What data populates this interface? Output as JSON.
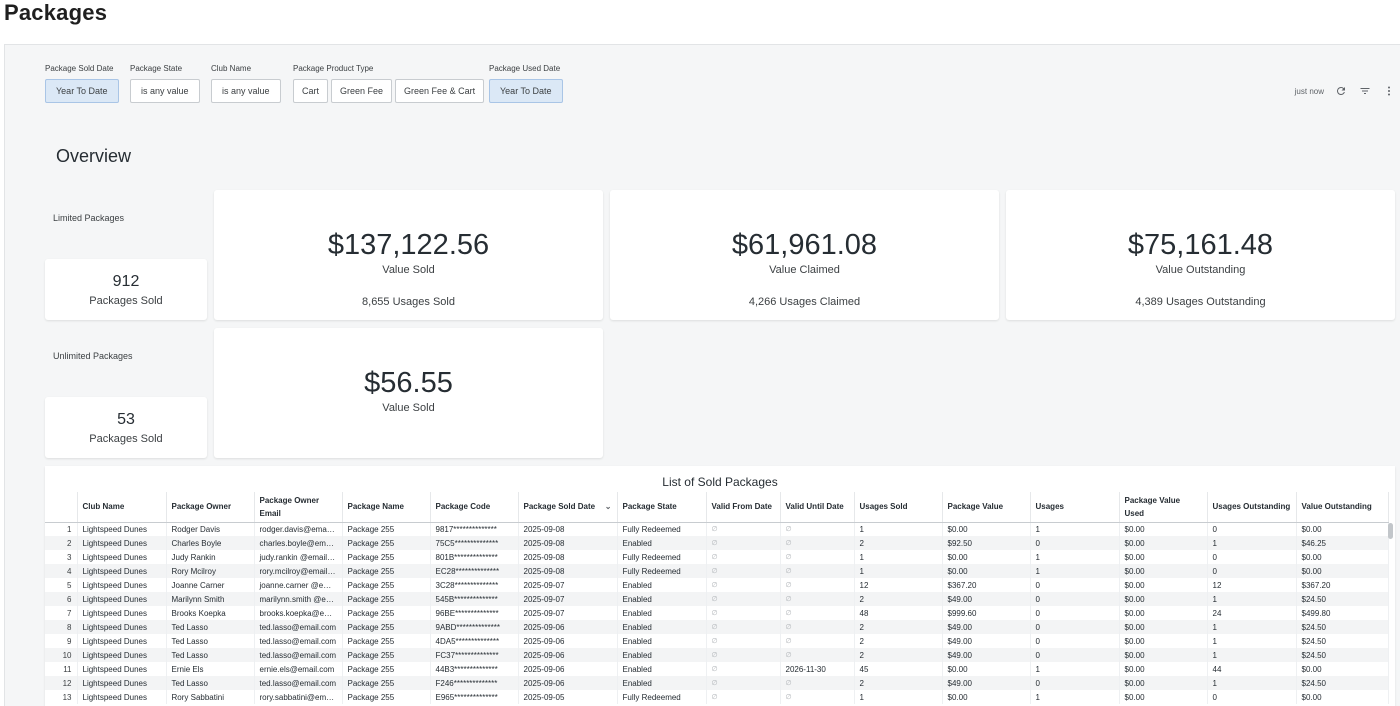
{
  "page": {
    "title": "Packages"
  },
  "filters": [
    {
      "label": "Package Sold Date",
      "chips": [
        {
          "text": "Year To Date",
          "selected": true
        }
      ]
    },
    {
      "label": "Package State",
      "chips": [
        {
          "text": "is any value",
          "selected": false
        }
      ]
    },
    {
      "label": "Club Name",
      "chips": [
        {
          "text": "is any value",
          "selected": false
        }
      ]
    },
    {
      "label": "Package Product Type",
      "chips": [
        {
          "text": "Cart",
          "selected": false
        },
        {
          "text": "Green Fee",
          "selected": false
        },
        {
          "text": "Green Fee & Cart",
          "selected": false
        }
      ]
    },
    {
      "label": "Package Used Date",
      "chips": [
        {
          "text": "Year To Date",
          "selected": true
        }
      ]
    }
  ],
  "toolbar": {
    "last_refresh": "just now",
    "icons": [
      "refresh-icon",
      "filter-icon",
      "more-vert-icon"
    ]
  },
  "overview": {
    "title": "Overview",
    "limited": {
      "label": "Limited Packages",
      "packages_sold": {
        "value": "912",
        "label": "Packages Sold"
      },
      "value_sold": {
        "value": "$137,122.56",
        "label": "Value Sold",
        "footer": "8,655 Usages Sold"
      },
      "value_claimed": {
        "value": "$61,961.08",
        "label": "Value Claimed",
        "footer": "4,266 Usages Claimed"
      },
      "value_outstanding": {
        "value": "$75,161.48",
        "label": "Value Outstanding",
        "footer": "4,389 Usages Outstanding"
      }
    },
    "unlimited": {
      "label": "Unlimited Packages",
      "packages_sold": {
        "value": "53",
        "label": "Packages Sold"
      },
      "value_sold": {
        "value": "$56.55",
        "label": "Value Sold"
      }
    }
  },
  "table": {
    "title": "List of Sold Packages",
    "null_symbol": "∅",
    "columns": [
      "",
      "Club Name",
      "Package Owner",
      "Package Owner Email",
      "Package Name",
      "Package Code",
      "Package Sold Date",
      "Package State",
      "Valid From Date",
      "Valid Until Date",
      "Usages Sold",
      "Package Value",
      "Usages",
      "Package Value Used",
      "Usages Outstanding",
      "Value Outstanding"
    ],
    "rows": [
      [
        "1",
        "Lightspeed Dunes",
        "Rodger Davis",
        "rodger.davis@email.com",
        "Package 255",
        "9817**************",
        "2025-09-08",
        "Fully Redeemed",
        "∅",
        "∅",
        "1",
        "$0.00",
        "1",
        "$0.00",
        "0",
        "$0.00"
      ],
      [
        "2",
        "Lightspeed Dunes",
        "Charles Boyle",
        "charles.boyle@email.com",
        "Package 255",
        "75C5**************",
        "2025-09-08",
        "Enabled",
        "∅",
        "∅",
        "2",
        "$92.50",
        "0",
        "$0.00",
        "1",
        "$46.25"
      ],
      [
        "3",
        "Lightspeed Dunes",
        "Judy Rankin",
        "judy.rankin @email.com",
        "Package 255",
        "801B**************",
        "2025-09-08",
        "Fully Redeemed",
        "∅",
        "∅",
        "1",
        "$0.00",
        "1",
        "$0.00",
        "0",
        "$0.00"
      ],
      [
        "4",
        "Lightspeed Dunes",
        "Rory Mcilroy",
        "rory.mcilroy@email.com",
        "Package 255",
        "EC28**************",
        "2025-09-08",
        "Fully Redeemed",
        "∅",
        "∅",
        "1",
        "$0.00",
        "1",
        "$0.00",
        "0",
        "$0.00"
      ],
      [
        "5",
        "Lightspeed Dunes",
        "Joanne Carner",
        "joanne.carner @email.com",
        "Package 255",
        "3C28**************",
        "2025-09-07",
        "Enabled",
        "∅",
        "∅",
        "12",
        "$367.20",
        "0",
        "$0.00",
        "12",
        "$367.20"
      ],
      [
        "6",
        "Lightspeed Dunes",
        "Marilynn Smith",
        "marilynn.smith @email.com",
        "Package 255",
        "545B**************",
        "2025-09-07",
        "Enabled",
        "∅",
        "∅",
        "2",
        "$49.00",
        "0",
        "$0.00",
        "1",
        "$24.50"
      ],
      [
        "7",
        "Lightspeed Dunes",
        "Brooks Koepka",
        "brooks.koepka@email.com",
        "Package 255",
        "96BE**************",
        "2025-09-07",
        "Enabled",
        "∅",
        "∅",
        "48",
        "$999.60",
        "0",
        "$0.00",
        "24",
        "$499.80"
      ],
      [
        "8",
        "Lightspeed Dunes",
        "Ted Lasso",
        "ted.lasso@email.com",
        "Package 255",
        "9ABD**************",
        "2025-09-06",
        "Enabled",
        "∅",
        "∅",
        "2",
        "$49.00",
        "0",
        "$0.00",
        "1",
        "$24.50"
      ],
      [
        "9",
        "Lightspeed Dunes",
        "Ted Lasso",
        "ted.lasso@email.com",
        "Package 255",
        "4DA5**************",
        "2025-09-06",
        "Enabled",
        "∅",
        "∅",
        "2",
        "$49.00",
        "0",
        "$0.00",
        "1",
        "$24.50"
      ],
      [
        "10",
        "Lightspeed Dunes",
        "Ted Lasso",
        "ted.lasso@email.com",
        "Package 255",
        "FC37**************",
        "2025-09-06",
        "Enabled",
        "∅",
        "∅",
        "2",
        "$49.00",
        "0",
        "$0.00",
        "1",
        "$24.50"
      ],
      [
        "11",
        "Lightspeed Dunes",
        "Ernie Els",
        "ernie.els@email.com",
        "Package 255",
        "44B3**************",
        "2025-09-06",
        "Enabled",
        "∅",
        "2026-11-30",
        "45",
        "$0.00",
        "1",
        "$0.00",
        "44",
        "$0.00"
      ],
      [
        "12",
        "Lightspeed Dunes",
        "Ted Lasso",
        "ted.lasso@email.com",
        "Package 255",
        "F246**************",
        "2025-09-06",
        "Enabled",
        "∅",
        "∅",
        "2",
        "$49.00",
        "0",
        "$0.00",
        "1",
        "$24.50"
      ],
      [
        "13",
        "Lightspeed Dunes",
        "Rory Sabbatini",
        "rory.sabbatini@email.com",
        "Package 255",
        "E965**************",
        "2025-09-05",
        "Fully Redeemed",
        "∅",
        "∅",
        "1",
        "$0.00",
        "1",
        "$0.00",
        "0",
        "$0.00"
      ]
    ]
  }
}
